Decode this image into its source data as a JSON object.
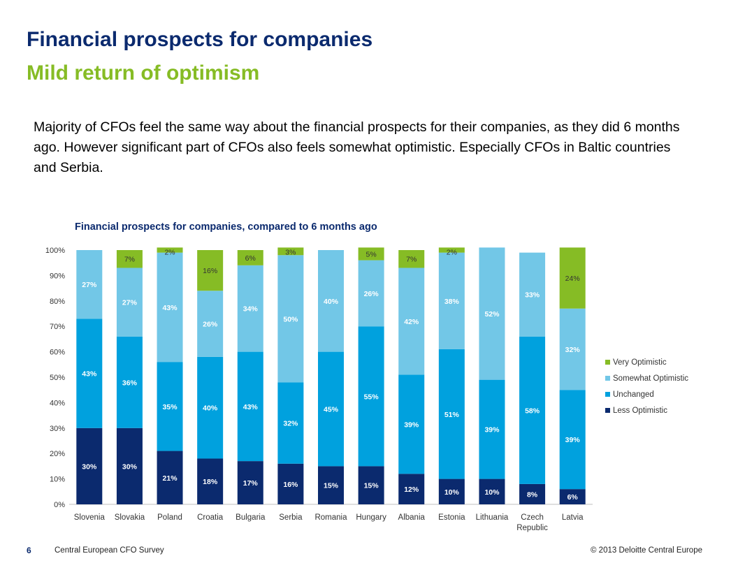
{
  "page": {
    "title": "Financial prospects for companies",
    "subtitle": "Mild return of optimism",
    "intro": "Majority of CFOs feel the same way about the financial prospects for their companies, as they did 6 months ago. However significant part of CFOs also feels somewhat optimistic. Especially CFOs in Baltic countries and Serbia."
  },
  "footer": {
    "page_number": "6",
    "left": "Central European CFO Survey",
    "right": "© 2013 Deloitte Central Europe"
  },
  "chart_data": {
    "type": "bar",
    "stacked": true,
    "title": "Financial prospects for companies, compared to 6 months ago",
    "xlabel": "",
    "ylabel": "",
    "ylim": [
      0,
      100
    ],
    "y_ticks": [
      "0%",
      "10%",
      "20%",
      "30%",
      "40%",
      "50%",
      "60%",
      "70%",
      "80%",
      "90%",
      "100%"
    ],
    "categories": [
      "Slovenia",
      "Slovakia",
      "Poland",
      "Croatia",
      "Bulgaria",
      "Serbia",
      "Romania",
      "Hungary",
      "Albania",
      "Estonia",
      "Lithuania",
      "Czech Republic",
      "Latvia"
    ],
    "legend_position": "right",
    "series": [
      {
        "name": "Less Optimistic",
        "color": "#0b2a6e",
        "values": [
          30,
          30,
          21,
          18,
          17,
          16,
          15,
          15,
          12,
          10,
          10,
          8,
          6
        ]
      },
      {
        "name": "Unchanged",
        "color": "#00a1de",
        "values": [
          43,
          36,
          35,
          40,
          43,
          32,
          45,
          55,
          39,
          51,
          39,
          58,
          39
        ]
      },
      {
        "name": "Somewhat Optimistic",
        "color": "#72c7e7",
        "values": [
          27,
          27,
          43,
          26,
          34,
          50,
          40,
          26,
          42,
          38,
          52,
          33,
          32
        ]
      },
      {
        "name": "Very Optimistic",
        "color": "#86bc25",
        "values": [
          0,
          7,
          2,
          16,
          6,
          3,
          0,
          5,
          7,
          2,
          0,
          0,
          24
        ]
      }
    ],
    "legend_order": [
      "Very Optimistic",
      "Somewhat Optimistic",
      "Unchanged",
      "Less Optimistic"
    ]
  }
}
